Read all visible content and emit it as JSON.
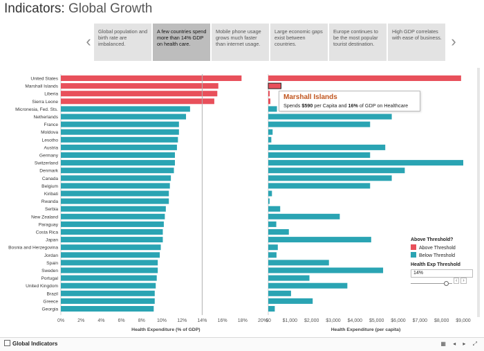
{
  "title": {
    "main": "Indicators:",
    "sub": "Global Growth"
  },
  "story": {
    "points": [
      "Global population and birth rate are imbalanced.",
      "A few countries spend more than 14% GDP on health care.",
      "Mobile phone usage grows much faster than internet usage.",
      "Large economic gaps exist between countries.",
      "Europe continues to be the most popular tourist destination.",
      "High GDP correlates with ease of business."
    ],
    "active_index": 1
  },
  "tooltip": {
    "country": "Marshall Islands",
    "prefix": "Spends ",
    "per_capita": "$590",
    "middle": " per Capita and ",
    "pct": "16%",
    "suffix": " of GDP on Healthcare"
  },
  "legend": {
    "title": "Above Threshold?",
    "items": [
      {
        "label": "Above Threshold",
        "color": "#e8505b"
      },
      {
        "label": "Below Threshold",
        "color": "#2aa4b3"
      }
    ],
    "threshold_title": "Health Exp Threshold",
    "threshold_value": "14%"
  },
  "footer": {
    "tab_label": "Global Indicators",
    "controls": "▦ ◂ ▸ ⤢"
  },
  "chart_data": [
    {
      "type": "bar",
      "orientation": "horizontal",
      "xlabel": "Health Expenditure (% of GDP)",
      "xlim": [
        0,
        20
      ],
      "x_ticks": [
        "0%",
        "2%",
        "4%",
        "6%",
        "8%",
        "10%",
        "12%",
        "14%",
        "16%",
        "18%",
        "20%"
      ],
      "threshold": 14,
      "categories": [
        "United States",
        "Marshall Islands",
        "Liberia",
        "Sierra Leone",
        "Micronesia, Fed. Sts.",
        "Netherlands",
        "France",
        "Moldova",
        "Lesotho",
        "Austria",
        "Germany",
        "Switzerland",
        "Denmark",
        "Canada",
        "Belgium",
        "Kiribati",
        "Rwanda",
        "Serbia",
        "New Zealand",
        "Paraguay",
        "Costa Rica",
        "Japan",
        "Bosnia and Herzegovina",
        "Jordan",
        "Spain",
        "Sweden",
        "Portugal",
        "United Kingdom",
        "Brazil",
        "Greece",
        "Georgia"
      ],
      "values": [
        17.9,
        15.6,
        15.5,
        15.2,
        12.8,
        12.4,
        11.7,
        11.7,
        11.6,
        11.5,
        11.3,
        11.3,
        11.2,
        10.9,
        10.8,
        10.7,
        10.7,
        10.4,
        10.3,
        10.2,
        10.1,
        10.1,
        9.9,
        9.8,
        9.6,
        9.6,
        9.5,
        9.4,
        9.3,
        9.3,
        9.2
      ],
      "above_threshold": [
        true,
        true,
        true,
        true,
        false,
        false,
        false,
        false,
        false,
        false,
        false,
        false,
        false,
        false,
        false,
        false,
        false,
        false,
        false,
        false,
        false,
        false,
        false,
        false,
        false,
        false,
        false,
        false,
        false,
        false,
        false
      ]
    },
    {
      "type": "bar",
      "orientation": "horizontal",
      "xlabel": "Health Expenditure (per capita)",
      "xlim": [
        0,
        9000
      ],
      "x_ticks": [
        "$0",
        "$1,000",
        "$2,000",
        "$3,000",
        "$4,000",
        "$5,000",
        "$6,000",
        "$7,000",
        "$8,000",
        "$9,000"
      ],
      "categories": [
        "United States",
        "Marshall Islands",
        "Liberia",
        "Sierra Leone",
        "Micronesia, Fed. Sts.",
        "Netherlands",
        "France",
        "Moldova",
        "Lesotho",
        "Austria",
        "Germany",
        "Switzerland",
        "Denmark",
        "Canada",
        "Belgium",
        "Kiribati",
        "Rwanda",
        "Serbia",
        "New Zealand",
        "Paraguay",
        "Costa Rica",
        "Japan",
        "Bosnia and Herzegovina",
        "Jordan",
        "Spain",
        "Sweden",
        "Portugal",
        "United Kingdom",
        "Brazil",
        "Greece",
        "Georgia"
      ],
      "values": [
        8900,
        590,
        65,
        96,
        400,
        5700,
        4700,
        200,
        140,
        5400,
        4700,
        9000,
        6300,
        5700,
        4700,
        170,
        60,
        550,
        3300,
        370,
        950,
        4750,
        440,
        380,
        2800,
        5300,
        1900,
        3650,
        1050,
        2050,
        300
      ],
      "above_threshold": [
        true,
        true,
        true,
        true,
        false,
        false,
        false,
        false,
        false,
        false,
        false,
        false,
        false,
        false,
        false,
        false,
        false,
        false,
        false,
        false,
        false,
        false,
        false,
        false,
        false,
        false,
        false,
        false,
        false,
        false,
        false
      ]
    }
  ],
  "colors": {
    "above": "#e8505b",
    "below": "#2aa4b3",
    "threshold_line": "#b0b0b0"
  }
}
